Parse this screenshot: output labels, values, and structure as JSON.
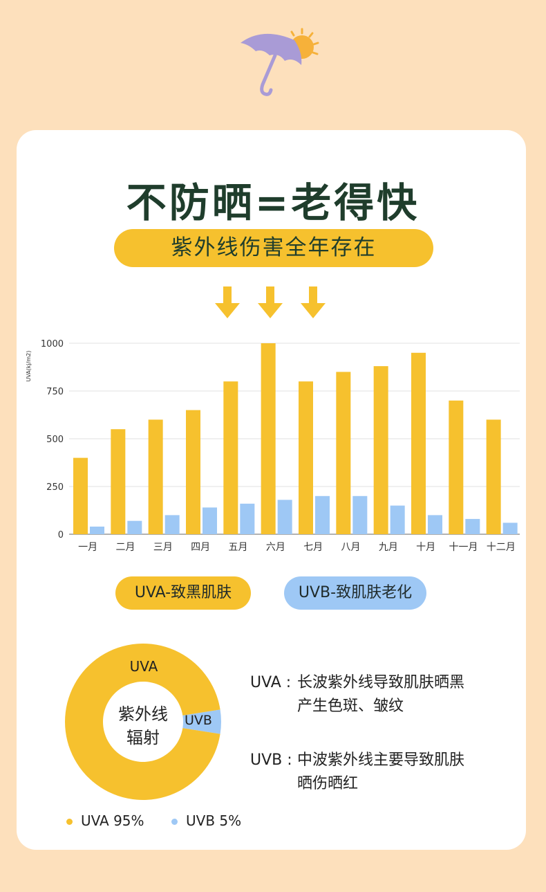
{
  "header": {
    "title": "不防晒=老得快",
    "subtitle": "紫外线伤害全年存在"
  },
  "colors": {
    "uva": "#f6c12e",
    "uvb": "#9ec8f5",
    "text_dark": "#1f3d2c",
    "background": "#fde0bc"
  },
  "icons": [
    "umbrella-sun-icon",
    "down-arrow-icon"
  ],
  "chart_data": [
    {
      "type": "bar",
      "ylabel": "UVA(kj/m2)",
      "ylim": [
        0,
        1000
      ],
      "yticks": [
        0,
        250,
        500,
        750,
        1000
      ],
      "grid": true,
      "categories": [
        "一月",
        "二月",
        "三月",
        "四月",
        "五月",
        "六月",
        "七月",
        "八月",
        "九月",
        "十月",
        "十一月",
        "十二月"
      ],
      "series": [
        {
          "name": "UVA",
          "color": "#f6c12e",
          "values": [
            400,
            550,
            600,
            650,
            800,
            1000,
            800,
            850,
            880,
            950,
            700,
            600
          ]
        },
        {
          "name": "UVB",
          "color": "#9ec8f5",
          "values": [
            40,
            70,
            100,
            140,
            160,
            180,
            200,
            200,
            150,
            100,
            80,
            60
          ]
        }
      ]
    },
    {
      "type": "pie",
      "center_label": [
        "紫外线",
        "辐射"
      ],
      "slices": [
        {
          "label": "UVA",
          "value": 95,
          "color": "#f6c12e"
        },
        {
          "label": "UVB",
          "value": 5,
          "color": "#9ec8f5"
        }
      ]
    }
  ],
  "legend": {
    "uva_label": "UVA-致黑肌肤",
    "uvb_label": "UVB-致肌肤老化"
  },
  "descriptions": {
    "uva_term": "UVA :",
    "uva_line1": "长波紫外线导致肌肤晒黑",
    "uva_line2": "产生色斑、皱纹",
    "uvb_term": "UVB :",
    "uvb_line1": "中波紫外线主要导致肌肤",
    "uvb_line2": "晒伤晒红"
  },
  "bottom_legend": {
    "uva": "UVA 95%",
    "uvb": "UVB 5%"
  }
}
